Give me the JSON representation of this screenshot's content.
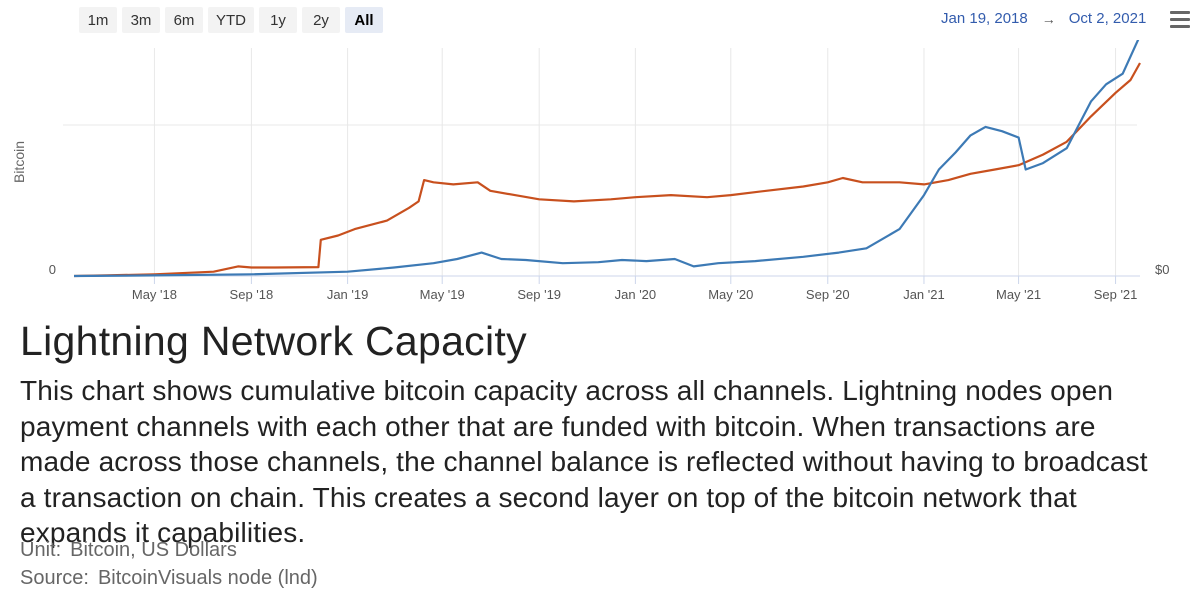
{
  "range_selector": {
    "buttons": [
      {
        "label": "1m",
        "active": false
      },
      {
        "label": "3m",
        "active": false
      },
      {
        "label": "6m",
        "active": false
      },
      {
        "label": "YTD",
        "active": false
      },
      {
        "label": "1y",
        "active": false
      },
      {
        "label": "2y",
        "active": false
      },
      {
        "label": "All",
        "active": true
      }
    ],
    "from": "Jan 19, 2018",
    "arrow": "→",
    "to": "Oct 2, 2021"
  },
  "menu_icon": "hamburger-menu-icon",
  "chart_data": {
    "type": "line",
    "ylabel": "Bitcoin",
    "y_left_tick": "0",
    "y_right_tick": "$0",
    "x_range": [
      "2018-01-19",
      "2021-10-02"
    ],
    "x_ticks": [
      {
        "label": "May '18",
        "date": "2018-05-01"
      },
      {
        "label": "Sep '18",
        "date": "2018-09-01"
      },
      {
        "label": "Jan '19",
        "date": "2019-01-01"
      },
      {
        "label": "May '19",
        "date": "2019-05-01"
      },
      {
        "label": "Sep '19",
        "date": "2019-09-01"
      },
      {
        "label": "Jan '20",
        "date": "2020-01-01"
      },
      {
        "label": "May '20",
        "date": "2020-05-01"
      },
      {
        "label": "Sep '20",
        "date": "2020-09-01"
      },
      {
        "label": "Jan '21",
        "date": "2021-01-01"
      },
      {
        "label": "May '21",
        "date": "2021-05-01"
      },
      {
        "label": "Sep '21",
        "date": "2021-09-01"
      }
    ],
    "grid": true,
    "note": "y-axis has no printed scale; values are read relative to the chart height (0 = baseline, 1 = top of plot)",
    "series": [
      {
        "axis": "right",
        "color": "#c8501e",
        "points": [
          [
            "2018-01-19",
            0.0
          ],
          [
            "2018-03-01",
            0.003
          ],
          [
            "2018-05-01",
            0.008
          ],
          [
            "2018-07-15",
            0.02
          ],
          [
            "2018-08-15",
            0.045
          ],
          [
            "2018-09-01",
            0.04
          ],
          [
            "2018-10-01",
            0.04
          ],
          [
            "2018-11-25",
            0.042
          ],
          [
            "2018-11-28",
            0.17
          ],
          [
            "2018-12-20",
            0.19
          ],
          [
            "2019-01-10",
            0.22
          ],
          [
            "2019-02-20",
            0.26
          ],
          [
            "2019-03-20",
            0.32
          ],
          [
            "2019-04-01",
            0.35
          ],
          [
            "2019-04-08",
            0.45
          ],
          [
            "2019-04-20",
            0.44
          ],
          [
            "2019-05-15",
            0.43
          ],
          [
            "2019-06-15",
            0.44
          ],
          [
            "2019-07-01",
            0.4
          ],
          [
            "2019-08-01",
            0.38
          ],
          [
            "2019-09-01",
            0.36
          ],
          [
            "2019-10-15",
            0.35
          ],
          [
            "2019-12-01",
            0.36
          ],
          [
            "2020-01-01",
            0.37
          ],
          [
            "2020-02-15",
            0.38
          ],
          [
            "2020-04-01",
            0.37
          ],
          [
            "2020-05-01",
            0.38
          ],
          [
            "2020-06-15",
            0.4
          ],
          [
            "2020-08-01",
            0.42
          ],
          [
            "2020-09-01",
            0.44
          ],
          [
            "2020-09-20",
            0.46
          ],
          [
            "2020-10-15",
            0.44
          ],
          [
            "2020-12-01",
            0.44
          ],
          [
            "2021-01-01",
            0.43
          ],
          [
            "2021-02-01",
            0.45
          ],
          [
            "2021-03-01",
            0.48
          ],
          [
            "2021-04-01",
            0.5
          ],
          [
            "2021-05-01",
            0.52
          ],
          [
            "2021-06-01",
            0.57
          ],
          [
            "2021-07-01",
            0.63
          ],
          [
            "2021-08-01",
            0.75
          ],
          [
            "2021-09-01",
            0.86
          ],
          [
            "2021-09-20",
            0.92
          ],
          [
            "2021-10-02",
            1.0
          ]
        ]
      },
      {
        "axis": "left",
        "color": "#3d7ab5",
        "points": [
          [
            "2018-01-19",
            0.0
          ],
          [
            "2018-05-01",
            0.003
          ],
          [
            "2018-09-01",
            0.008
          ],
          [
            "2019-01-01",
            0.02
          ],
          [
            "2019-03-01",
            0.04
          ],
          [
            "2019-04-20",
            0.06
          ],
          [
            "2019-05-20",
            0.08
          ],
          [
            "2019-06-20",
            0.11
          ],
          [
            "2019-07-15",
            0.08
          ],
          [
            "2019-08-15",
            0.075
          ],
          [
            "2019-10-01",
            0.06
          ],
          [
            "2019-11-15",
            0.065
          ],
          [
            "2019-12-15",
            0.075
          ],
          [
            "2020-01-15",
            0.07
          ],
          [
            "2020-02-20",
            0.08
          ],
          [
            "2020-03-15",
            0.045
          ],
          [
            "2020-04-15",
            0.06
          ],
          [
            "2020-06-01",
            0.07
          ],
          [
            "2020-08-01",
            0.09
          ],
          [
            "2020-09-15",
            0.11
          ],
          [
            "2020-10-20",
            0.13
          ],
          [
            "2020-12-01",
            0.22
          ],
          [
            "2021-01-01",
            0.38
          ],
          [
            "2021-01-20",
            0.5
          ],
          [
            "2021-02-10",
            0.58
          ],
          [
            "2021-03-01",
            0.66
          ],
          [
            "2021-03-20",
            0.7
          ],
          [
            "2021-04-10",
            0.68
          ],
          [
            "2021-05-01",
            0.65
          ],
          [
            "2021-05-10",
            0.5
          ],
          [
            "2021-06-01",
            0.53
          ],
          [
            "2021-07-01",
            0.6
          ],
          [
            "2021-08-01",
            0.82
          ],
          [
            "2021-08-20",
            0.9
          ],
          [
            "2021-09-10",
            0.95
          ],
          [
            "2021-10-01",
            1.12
          ],
          [
            "2021-10-02",
            1.16
          ]
        ]
      }
    ]
  },
  "title": "Lightning Network Capacity",
  "description": "This chart shows cumulative bitcoin capacity across all channels. Lightning nodes open payment channels with each other that are funded with bitcoin. When transactions are made across those channels, the channel balance is reflected without having to broadcast a transaction on chain. This creates a second layer on top of the bitcoin network that expands it capabilities.",
  "meta": {
    "unit_label": "Unit:",
    "unit_value": "Bitcoin, US Dollars",
    "source_label": "Source:",
    "source_value": "BitcoinVisuals node (lnd)"
  }
}
